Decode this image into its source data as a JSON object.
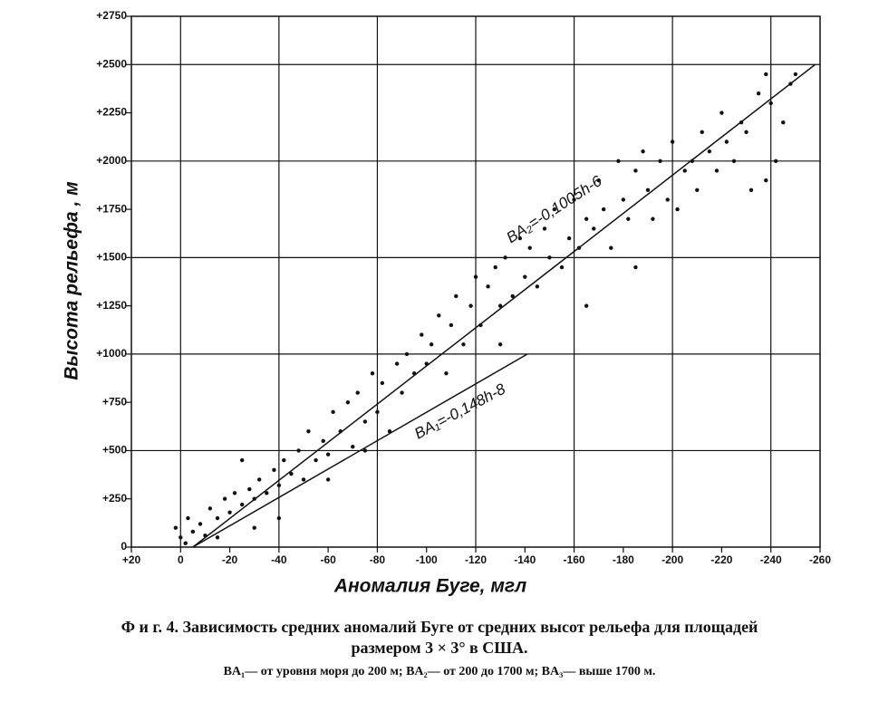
{
  "chart_data": {
    "type": "scatter",
    "xlabel": "Аномалия Буге, мгл",
    "ylabel": "Высота рельефа , м",
    "xlim": [
      20,
      -260
    ],
    "ylim": [
      0,
      2750
    ],
    "xticks": [
      {
        "value": 20,
        "label": "+20"
      },
      0,
      -20,
      -40,
      -60,
      -80,
      -100,
      -120,
      -140,
      -160,
      -180,
      -200,
      -220,
      -240,
      -260
    ],
    "yticks": [
      0,
      {
        "value": 250,
        "label": "+250"
      },
      {
        "value": 500,
        "label": "+500"
      },
      {
        "value": 750,
        "label": "+750"
      },
      {
        "value": 1000,
        "label": "+1000"
      },
      {
        "value": 1250,
        "label": "+1250"
      },
      {
        "value": 1500,
        "label": "+1500"
      },
      {
        "value": 1750,
        "label": "+1750"
      },
      {
        "value": 2000,
        "label": "+2000"
      },
      {
        "value": 2250,
        "label": "+2250"
      },
      {
        "value": 2500,
        "label": "+2500"
      },
      {
        "value": 2750,
        "label": "+2750"
      }
    ],
    "xgrid": [
      0,
      -40,
      -80,
      -120,
      -160,
      -200,
      -240
    ],
    "ygrid": [
      500,
      1000,
      1500,
      2000,
      2500
    ],
    "color": "#111111",
    "x": [
      0,
      2,
      -3,
      -5,
      -8,
      -10,
      -2,
      -12,
      -15,
      -18,
      -20,
      -22,
      -25,
      -28,
      -30,
      -32,
      -35,
      -38,
      -40,
      -42,
      -45,
      -48,
      -50,
      -52,
      -55,
      -58,
      -60,
      -62,
      -65,
      -68,
      -70,
      -72,
      -75,
      -78,
      -80,
      -82,
      -85,
      -88,
      -90,
      -92,
      -95,
      -98,
      -100,
      -102,
      -105,
      -108,
      -110,
      -112,
      -115,
      -118,
      -120,
      -122,
      -125,
      -128,
      -130,
      -132,
      -135,
      -138,
      -140,
      -142,
      -145,
      -148,
      -150,
      -152,
      -155,
      -158,
      -160,
      -162,
      -165,
      -168,
      -170,
      -172,
      -175,
      -178,
      -180,
      -182,
      -185,
      -188,
      -190,
      -192,
      -195,
      -198,
      -200,
      -202,
      -205,
      -208,
      -210,
      -212,
      -215,
      -218,
      -220,
      -222,
      -225,
      -228,
      -230,
      -232,
      -235,
      -238,
      -240,
      -242,
      -245,
      -248,
      -250,
      -25,
      -60,
      -75,
      -40,
      -30,
      -15,
      -130,
      -165,
      -185,
      -238
    ],
    "values": [
      50,
      100,
      150,
      80,
      120,
      60,
      20,
      200,
      150,
      250,
      180,
      280,
      220,
      300,
      250,
      350,
      280,
      400,
      320,
      450,
      380,
      500,
      350,
      600,
      450,
      550,
      480,
      700,
      600,
      750,
      520,
      800,
      650,
      900,
      700,
      850,
      600,
      950,
      800,
      1000,
      900,
      1100,
      950,
      1050,
      1200,
      900,
      1150,
      1300,
      1050,
      1250,
      1400,
      1150,
      1350,
      1450,
      1250,
      1500,
      1300,
      1600,
      1400,
      1550,
      1350,
      1650,
      1500,
      1750,
      1450,
      1600,
      1800,
      1550,
      1700,
      1650,
      1900,
      1750,
      1550,
      2000,
      1800,
      1700,
      1950,
      2050,
      1850,
      1700,
      2000,
      1800,
      2100,
      1750,
      1950,
      2000,
      1850,
      2150,
      2050,
      1950,
      2250,
      2100,
      2000,
      2200,
      2150,
      1850,
      2350,
      2450,
      2300,
      2000,
      2200,
      2400,
      2450,
      450,
      350,
      500,
      150,
      100,
      50,
      1050,
      1250,
      1450,
      1900
    ],
    "lines": [
      {
        "x": [
          -5,
          -258
        ],
        "values": [
          0,
          2500
        ]
      },
      {
        "x": [
          -5,
          -141
        ],
        "values": [
          0,
          1000
        ]
      }
    ],
    "annotations": [
      "BA₂=-0,1005h-6",
      "BA₁=-0,148h-8"
    ],
    "caption": [
      "Ф и г. 4. Зависимость средних аномалий Буге от средних высот рельефа для площадей",
      "размером 3 × 3° в США.",
      "BA₁— от уровня моря до 200 м; BA₂— от 200 до 1700 м; BA₃— выше 1700 м."
    ]
  }
}
